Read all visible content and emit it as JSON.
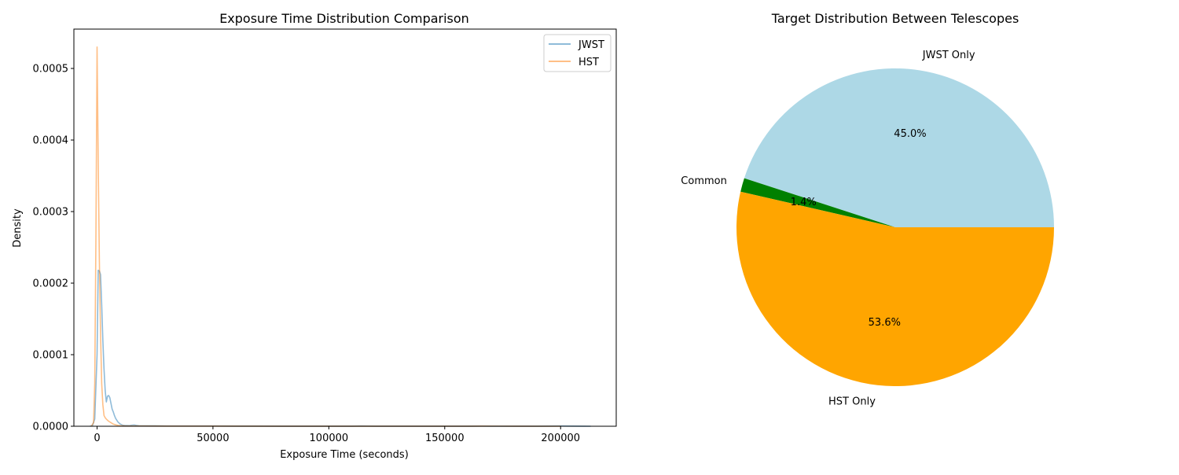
{
  "chart_data": [
    {
      "type": "line",
      "title": "Exposure Time Distribution Comparison",
      "xlabel": "Exposure Time (seconds)",
      "ylabel": "Density",
      "xlim": [
        -10000,
        224000
      ],
      "ylim": [
        0,
        0.000555
      ],
      "xticks": [
        0,
        50000,
        100000,
        150000,
        200000
      ],
      "xtick_labels": [
        "0",
        "50000",
        "100000",
        "150000",
        "200000"
      ],
      "yticks": [
        0,
        0.0001,
        0.0002,
        0.0003,
        0.0004,
        0.0005
      ],
      "ytick_labels": [
        "0.0000",
        "0.0001",
        "0.0002",
        "0.0003",
        "0.0004",
        "0.0005"
      ],
      "grid": false,
      "legend": "top-right",
      "series": [
        {
          "name": "JWST",
          "color": "#1f77b4",
          "x": [
            -3000,
            -2000,
            -1000,
            0,
            500,
            1000,
            1500,
            2000,
            2500,
            3000,
            3500,
            4000,
            4500,
            5000,
            5500,
            6000,
            6500,
            7000,
            7500,
            8000,
            9000,
            10000,
            11000,
            12000,
            13000,
            14000,
            15000,
            16000,
            17000,
            18000,
            20000,
            25000,
            30000,
            40000,
            50000,
            60000,
            70000,
            80000,
            90000,
            100000,
            110000,
            114000,
            120000,
            130000,
            140000,
            150000,
            160000,
            166000,
            170000,
            180000,
            190000,
            200000,
            210000,
            213000
          ],
          "y": [
            0,
            1e-06,
            1e-05,
            0.0001,
            0.000218,
            0.000217,
            0.000212,
            0.00017,
            0.00012,
            8e-05,
            5e-05,
            3.4e-05,
            4.2e-05,
            4.3e-05,
            4e-05,
            3.2e-05,
            2.4e-05,
            2e-05,
            1.5e-05,
            1.1e-05,
            6e-06,
            3e-06,
            1.5e-06,
            1e-06,
            1e-06,
            9e-07,
            1.5e-06,
            1.8e-06,
            1.2e-06,
            8e-07,
            6e-07,
            6e-07,
            4e-07,
            3e-07,
            3e-07,
            2e-07,
            2e-07,
            1e-07,
            1e-07,
            1e-07,
            1e-07,
            3e-07,
            1e-07,
            1e-07,
            1e-07,
            1e-07,
            1e-07,
            2e-07,
            1e-07,
            1e-07,
            1e-07,
            3e-07,
            1e-07,
            0
          ]
        },
        {
          "name": "HST",
          "color": "#ff7f0e",
          "x": [
            -2500,
            -1500,
            -1000,
            -500,
            0,
            300,
            600,
            1000,
            1500,
            2000,
            2500,
            3000,
            3500,
            4000,
            5000,
            6000,
            7000,
            8000,
            9000,
            10000,
            12000,
            15000,
            20000,
            30000,
            50000,
            80000,
            100000,
            130000,
            160000,
            166000,
            180000,
            200000
          ],
          "y": [
            0,
            5e-06,
            6e-05,
            0.00026,
            0.00053,
            0.000435,
            0.00034,
            0.00023,
            0.00013,
            6e-05,
            3e-05,
            1.5e-05,
            1.2e-05,
            1e-05,
            7e-06,
            5e-06,
            3e-06,
            2e-06,
            1.2e-06,
            8e-07,
            5e-07,
            4e-07,
            3e-07,
            2e-07,
            2e-07,
            1e-07,
            1e-07,
            1e-07,
            1e-07,
            2e-07,
            1e-07,
            0
          ]
        }
      ]
    },
    {
      "type": "pie",
      "title": "Target Distribution Between Telescopes",
      "slices": [
        {
          "label": "JWST Only",
          "value": 45.0,
          "pct_label": "45.0%",
          "color": "#add8e6"
        },
        {
          "label": "Common",
          "value": 1.4,
          "pct_label": "1.4%",
          "color": "#008000"
        },
        {
          "label": "HST Only",
          "value": 53.6,
          "pct_label": "53.6%",
          "color": "#ffa500"
        }
      ],
      "start_angle_deg": 0,
      "direction": "counterclockwise",
      "legend": "none"
    }
  ]
}
